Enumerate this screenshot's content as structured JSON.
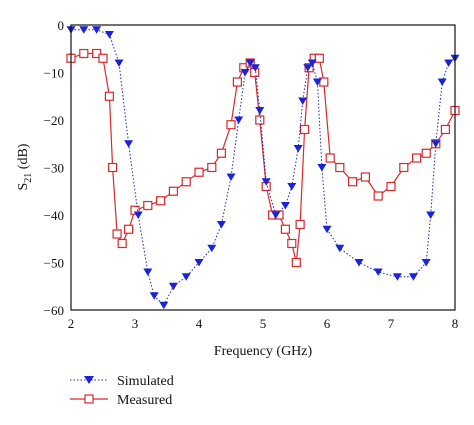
{
  "chart_data": {
    "type": "line",
    "xlabel": "Frequency (GHz)",
    "ylabel_main": "S",
    "ylabel_sub": "21",
    "ylabel_unit": " (dB)",
    "xlim": [
      2,
      8
    ],
    "ylim": [
      -60,
      0
    ],
    "xticks": [
      "2",
      "3",
      "4",
      "5",
      "6",
      "7",
      "8"
    ],
    "yticks": [
      "0",
      "−10",
      "−20",
      "−30",
      "−40",
      "−50",
      "−60"
    ],
    "grid": false,
    "legend_position": "below-left",
    "series": [
      {
        "name": "Simulated",
        "color": "#1a23d6",
        "marker": "triangle-down",
        "line": "dotted",
        "x": [
          2.0,
          2.2,
          2.4,
          2.6,
          2.75,
          2.9,
          3.05,
          3.2,
          3.3,
          3.45,
          3.6,
          3.8,
          4.0,
          4.2,
          4.35,
          4.5,
          4.62,
          4.72,
          4.8,
          4.88,
          4.95,
          5.05,
          5.2,
          5.35,
          5.45,
          5.55,
          5.62,
          5.7,
          5.77,
          5.85,
          5.92,
          6.0,
          6.2,
          6.5,
          6.8,
          7.1,
          7.35,
          7.55,
          7.62,
          7.7,
          7.8,
          7.9,
          8.0
        ],
        "y": [
          -1,
          -1,
          -1,
          -2,
          -8,
          -25,
          -40,
          -52,
          -57,
          -59,
          -55,
          -53,
          -50,
          -47,
          -42,
          -32,
          -20,
          -10,
          -8,
          -9,
          -18,
          -33,
          -40,
          -38,
          -34,
          -26,
          -16,
          -9,
          -8,
          -12,
          -30,
          -43,
          -47,
          -50,
          -52,
          -53,
          -53,
          -50,
          -40,
          -25,
          -12,
          -8,
          -7
        ]
      },
      {
        "name": "Measured",
        "color": "#d8292d",
        "marker": "square-open",
        "line": "solid",
        "x": [
          2.0,
          2.2,
          2.4,
          2.5,
          2.6,
          2.65,
          2.72,
          2.8,
          2.9,
          3.0,
          3.2,
          3.4,
          3.6,
          3.8,
          4.0,
          4.2,
          4.35,
          4.5,
          4.6,
          4.7,
          4.8,
          4.87,
          4.95,
          5.05,
          5.15,
          5.25,
          5.35,
          5.45,
          5.52,
          5.58,
          5.65,
          5.72,
          5.8,
          5.88,
          5.95,
          6.05,
          6.2,
          6.4,
          6.6,
          6.8,
          7.0,
          7.2,
          7.4,
          7.55,
          7.7,
          7.85,
          8.0
        ],
        "y": [
          -7,
          -6,
          -6,
          -7,
          -15,
          -30,
          -44,
          -46,
          -43,
          -39,
          -38,
          -37,
          -35,
          -33,
          -31,
          -30,
          -27,
          -21,
          -12,
          -9,
          -8,
          -10,
          -20,
          -34,
          -40,
          -40,
          -43,
          -46,
          -50,
          -42,
          -22,
          -9,
          -7,
          -7,
          -12,
          -28,
          -30,
          -33,
          -32,
          -36,
          -34,
          -30,
          -28,
          -27,
          -25,
          -22,
          -18
        ]
      }
    ]
  }
}
